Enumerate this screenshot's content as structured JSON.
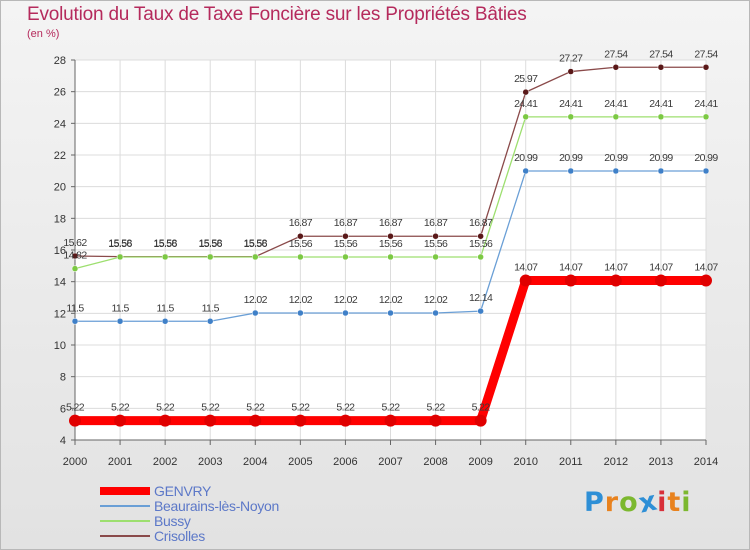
{
  "title": "Evolution du Taux de Taxe Foncière sur les Propriétés Bâties",
  "unit_label": "(en %)",
  "logo_text": "Proxiti",
  "logo_colors": [
    "#2e8fd6",
    "#e8821e",
    "#7cb82f",
    "#2e8fd6",
    "#d8303a",
    "#e8821e",
    "#7cb82f"
  ],
  "chart_data": {
    "type": "line",
    "title": "Evolution du Taux de Taxe Foncière sur les Propriétés Bâties",
    "ylabel": "(en %)",
    "xlabel": "",
    "ylim": [
      4,
      28
    ],
    "yticks": [
      4,
      6,
      8,
      10,
      12,
      14,
      16,
      18,
      20,
      22,
      24,
      26,
      28
    ],
    "categories": [
      "2000",
      "2001",
      "2002",
      "2003",
      "2004",
      "2005",
      "2006",
      "2007",
      "2008",
      "2009",
      "2010",
      "2011",
      "2012",
      "2013",
      "2014"
    ],
    "grid": true,
    "legend": "bottom-left",
    "series": [
      {
        "name": "GENVRY",
        "color": "#ff0000",
        "markerColor": "#e00000",
        "thick": true,
        "values": [
          5.22,
          5.22,
          5.22,
          5.22,
          5.22,
          5.22,
          5.22,
          5.22,
          5.22,
          5.22,
          14.07,
          14.07,
          14.07,
          14.07,
          14.07
        ],
        "labels": [
          "5.22",
          "5.22",
          "5.22",
          "5.22",
          "5.22",
          "5.22",
          "5.22",
          "5.22",
          "5.22",
          "5.22",
          "14.07",
          "14.07",
          "14.07",
          "14.07",
          "14.07"
        ]
      },
      {
        "name": "Beaurains-lès-Noyon",
        "color": "#6a9fd6",
        "markerColor": "#3f80c8",
        "values": [
          11.5,
          11.5,
          11.5,
          11.5,
          12.02,
          12.02,
          12.02,
          12.02,
          12.02,
          12.14,
          20.99,
          20.99,
          20.99,
          20.99,
          20.99
        ],
        "labels": [
          "11.5",
          "11.5",
          "11.5",
          "11.5",
          "12.02",
          "12.02",
          "12.02",
          "12.02",
          "12.02",
          "12.14",
          "20.99",
          "20.99",
          "20.99",
          "20.99",
          "20.99"
        ]
      },
      {
        "name": "Bussy",
        "color": "#9ddf6f",
        "markerColor": "#7cc943",
        "values": [
          14.82,
          15.56,
          15.56,
          15.56,
          15.56,
          15.56,
          15.56,
          15.56,
          15.56,
          15.56,
          24.41,
          24.41,
          24.41,
          24.41,
          24.41
        ],
        "labels": [
          "14.82",
          "15.56",
          "15.56",
          "15.56",
          "15.56",
          "15.56",
          "15.56",
          "15.56",
          "15.56",
          "15.56",
          "24.41",
          "24.41",
          "24.41",
          "24.41",
          "24.41"
        ]
      },
      {
        "name": "Crisolles",
        "color": "#8a4a4a",
        "markerColor": "#5a1818",
        "values": [
          15.62,
          15.58,
          15.58,
          15.58,
          15.58,
          16.87,
          16.87,
          16.87,
          16.87,
          16.87,
          25.97,
          27.27,
          27.54,
          27.54,
          27.54
        ],
        "labels": [
          "15.62",
          "15.58",
          "15.58",
          "15.58",
          "15.58",
          "16.87",
          "16.87",
          "16.87",
          "16.87",
          "16.87",
          "25.97",
          "27.27",
          "27.54",
          "27.54",
          "27.54"
        ]
      }
    ]
  }
}
